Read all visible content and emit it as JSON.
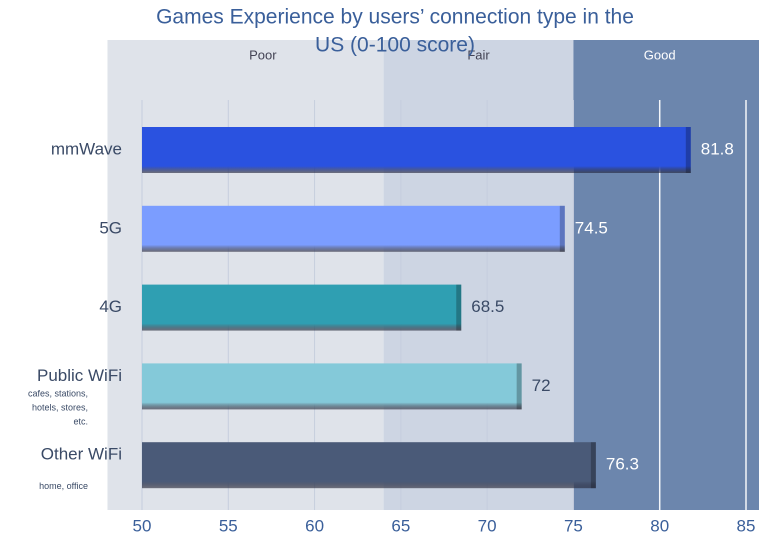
{
  "chart_data": {
    "type": "hbar",
    "title_lines": [
      "Games Experience by users’ connection type in the",
      "US (0-100 score)"
    ],
    "categories": [
      "mmWave",
      "5G",
      "4G",
      "Public WiFi",
      "Other WiFi"
    ],
    "sublabels": [
      null,
      null,
      null,
      "cafes, stations, hotels, stores, etc.",
      "home, office"
    ],
    "values": [
      81.8,
      74.5,
      68.5,
      72,
      76.3
    ],
    "colors": [
      "#2a52e0",
      "#7b9dff",
      "#2f9fb2",
      "#84c9d9",
      "#4a5a78"
    ],
    "bands": [
      {
        "label": "Poor",
        "from": 48,
        "to": 64,
        "color": "#dfe3ea"
      },
      {
        "label": "Fair",
        "from": 64,
        "to": 75,
        "color": "#cdd5e3"
      },
      {
        "label": "Good",
        "from": 75,
        "to": 87,
        "color": "#6c86ad"
      }
    ],
    "xlim": [
      50,
      85
    ],
    "xticks": [
      50,
      55,
      60,
      65,
      70,
      75,
      80,
      85
    ],
    "grid": true
  }
}
